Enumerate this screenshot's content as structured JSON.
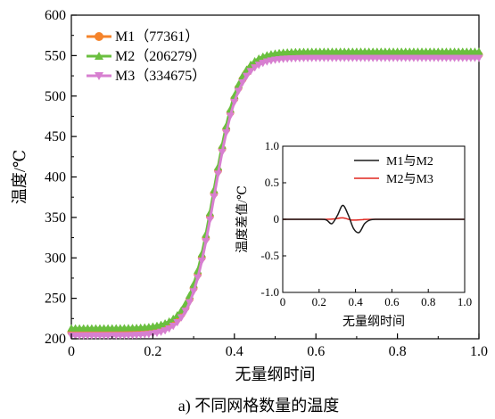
{
  "caption": "a) 不同网格数量的温度",
  "chart_data": [
    {
      "type": "line",
      "xlabel": "无量纲时间",
      "ylabel": "温度/℃",
      "xlim": [
        0,
        1.0
      ],
      "ylim": [
        200,
        600
      ],
      "xticks": [
        "0",
        "0.2",
        "0.4",
        "0.6",
        "0.8",
        "1.0"
      ],
      "yticks": [
        "200",
        "250",
        "300",
        "350",
        "400",
        "450",
        "500",
        "550",
        "600"
      ],
      "grid": false,
      "legend_position": "top-left",
      "series": [
        {
          "name": "M1（77361）",
          "color": "#f5832a",
          "marker": "circle",
          "start": 208,
          "end": 551,
          "center": 0.35,
          "width": 0.03
        },
        {
          "name": "M2（206279）",
          "color": "#6abf3f",
          "marker": "triangle-up",
          "start": 213,
          "end": 555,
          "center": 0.35,
          "width": 0.03
        },
        {
          "name": "M3（334675）",
          "color": "#d77fd0",
          "marker": "triangle-down",
          "start": 204,
          "end": 547,
          "center": 0.35,
          "width": 0.03
        }
      ]
    },
    {
      "type": "line",
      "xlabel": "无量纲时间",
      "ylabel": "温度差值/℃",
      "xlim": [
        0,
        1.0
      ],
      "ylim": [
        -1.0,
        1.0
      ],
      "xticks": [
        "0",
        "0.2",
        "0.4",
        "0.6",
        "0.8",
        "1.0"
      ],
      "yticks": [
        "-1.0",
        "-0.5",
        "0",
        "0.5",
        "1.0"
      ],
      "grid": false,
      "legend_position": "top-right",
      "series": [
        {
          "name": "M1与M2",
          "color": "#1a1a1a",
          "x": [
            0,
            0.2,
            0.24,
            0.27,
            0.3,
            0.33,
            0.36,
            0.39,
            0.42,
            0.45,
            0.48,
            0.52,
            0.6,
            1.0
          ],
          "y": [
            0,
            0,
            -0.01,
            -0.06,
            0.05,
            0.19,
            0.06,
            -0.13,
            -0.18,
            -0.06,
            -0.01,
            0,
            0,
            0
          ]
        },
        {
          "name": "M2与M3",
          "color": "#e0261f",
          "x": [
            0,
            0.22,
            0.28,
            0.33,
            0.38,
            0.44,
            0.5,
            1.0
          ],
          "y": [
            0,
            0,
            0.005,
            0.02,
            -0.01,
            -0.005,
            0,
            0
          ]
        }
      ]
    }
  ]
}
